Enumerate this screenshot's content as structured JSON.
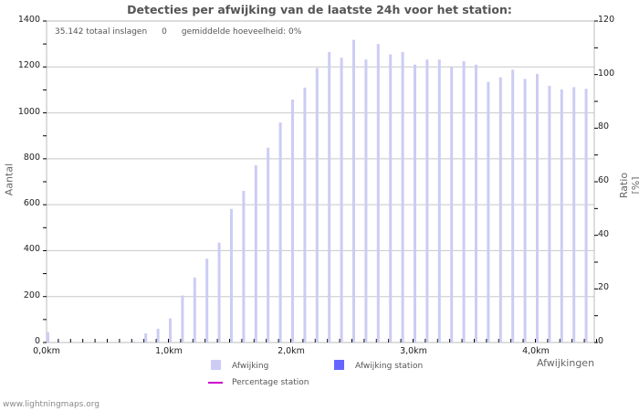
{
  "title": "Detecties per afwijking van de laatste 24h voor het station:",
  "summary": {
    "total": "35.142 totaal inslagen",
    "station_count": "0",
    "average": "gemiddelde hoeveelheid: 0%"
  },
  "axes": {
    "left_label": "Aantal",
    "right_label": "Ratio [%]",
    "x_label": "Afwijkingen",
    "left_ticks": [
      "0",
      "200",
      "400",
      "600",
      "800",
      "1000",
      "1200",
      "1400"
    ],
    "right_ticks": [
      "0",
      "20",
      "40",
      "60",
      "80",
      "100",
      "120"
    ],
    "x_ticks": [
      "0,0km",
      "1,0km",
      "2,0km",
      "3,0km",
      "4,0km"
    ]
  },
  "legend": {
    "afwijking": "Afwijking",
    "afwijking_station": "Afwijking station",
    "percentage_station": "Percentage station"
  },
  "colors": {
    "afwijking": "#ccccf5",
    "afwijking_station": "#6666ff",
    "percentage_station": "#cc00cc",
    "grid": "#c8c8c8"
  },
  "footer": "www.lightningmaps.org",
  "chart_data": {
    "type": "bar",
    "title": "Detecties per afwijking van de laatste 24h voor het station:",
    "xlabel": "Afwijkingen",
    "ylabel": "Aantal",
    "y2label": "Ratio [%]",
    "ylim": [
      0,
      1400
    ],
    "y2lim": [
      0,
      120
    ],
    "grid": true,
    "legend_position": "bottom",
    "categories": [
      "0,0",
      "0,1",
      "0,2",
      "0,3",
      "0,4",
      "0,5",
      "0,6",
      "0,7",
      "0,8",
      "0,9",
      "1,0",
      "1,1",
      "1,2",
      "1,3",
      "1,4",
      "1,5",
      "1,6",
      "1,7",
      "1,8",
      "1,9",
      "2,0",
      "2,1",
      "2,2",
      "2,3",
      "2,4",
      "2,5",
      "2,6",
      "2,7",
      "2,8",
      "2,9",
      "3,0",
      "3,1",
      "3,2",
      "3,3",
      "3,4",
      "3,5",
      "3,6",
      "3,7",
      "3,8",
      "3,9",
      "4,0",
      "4,1",
      "4,2",
      "4,3",
      "4,4"
    ],
    "series": [
      {
        "name": "Afwijking",
        "values": [
          45,
          0,
          0,
          0,
          0,
          0,
          0,
          5,
          40,
          60,
          105,
          205,
          283,
          365,
          435,
          582,
          660,
          772,
          848,
          958,
          1058,
          1110,
          1195,
          1265,
          1240,
          1318,
          1232,
          1300,
          1255,
          1265,
          1210,
          1232,
          1232,
          1200,
          1225,
          1210,
          1135,
          1155,
          1188,
          1148,
          1170,
          1118,
          1102,
          1112,
          1105
        ]
      },
      {
        "name": "Afwijking station",
        "values": [
          0,
          0,
          0,
          0,
          0,
          0,
          0,
          0,
          0,
          0,
          0,
          0,
          0,
          0,
          0,
          0,
          0,
          0,
          0,
          0,
          0,
          0,
          0,
          0,
          0,
          0,
          0,
          0,
          0,
          0,
          0,
          0,
          0,
          0,
          0,
          0,
          0,
          0,
          0,
          0,
          0,
          0,
          0,
          0,
          0
        ]
      },
      {
        "name": "Percentage station",
        "values": [
          0,
          0,
          0,
          0,
          0,
          0,
          0,
          0,
          0,
          0,
          0,
          0,
          0,
          0,
          0,
          0,
          0,
          0,
          0,
          0,
          0,
          0,
          0,
          0,
          0,
          0,
          0,
          0,
          0,
          0,
          0,
          0,
          0,
          0,
          0,
          0,
          0,
          0,
          0,
          0,
          0,
          0,
          0,
          0,
          0
        ]
      }
    ]
  }
}
